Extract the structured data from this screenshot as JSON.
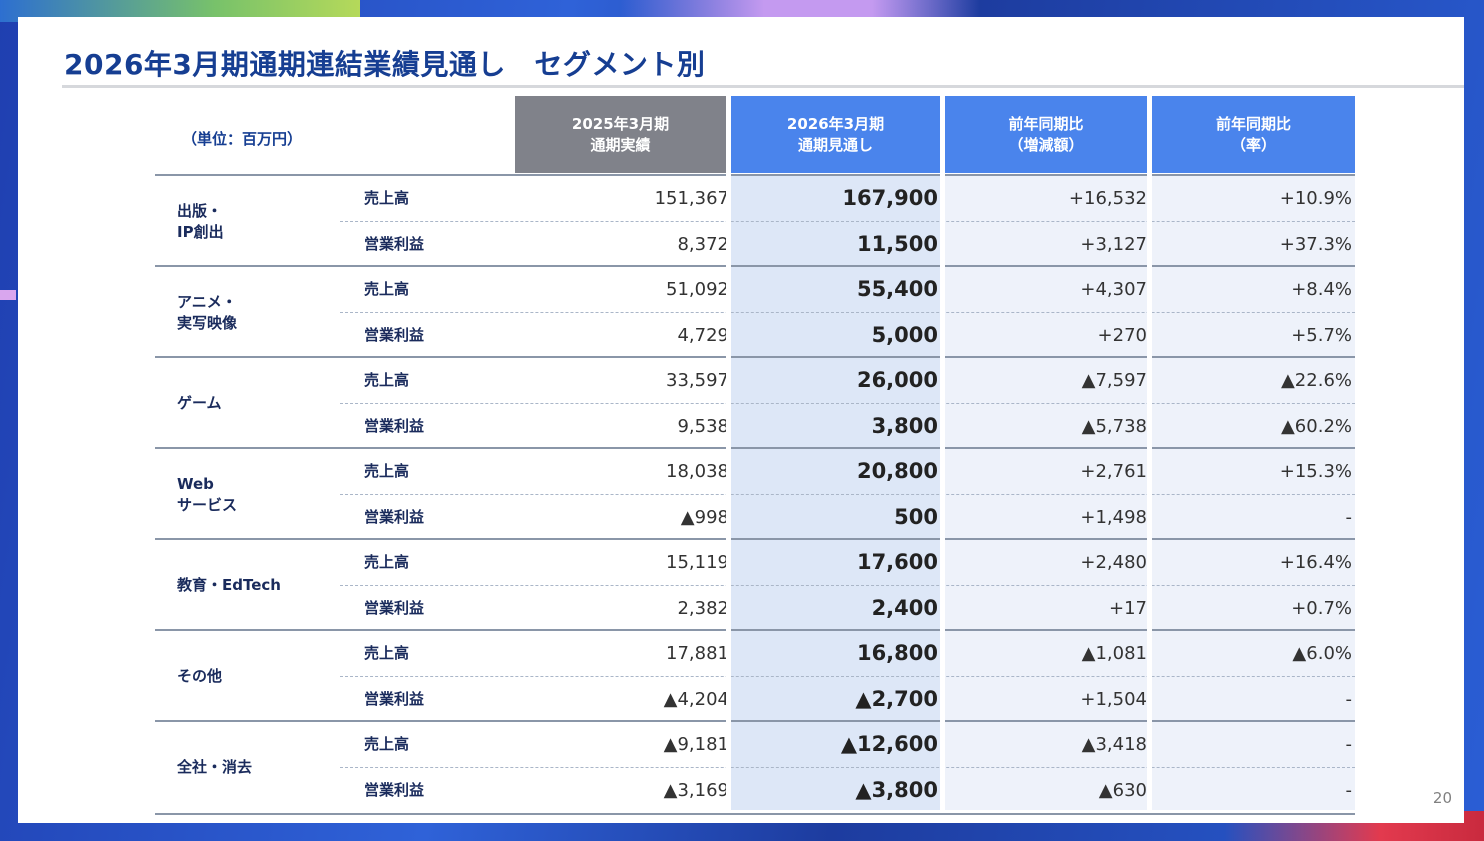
{
  "slide": {
    "title": "2026年3月期通期連結業績見通し　セグメント別",
    "page_number": "20"
  },
  "table": {
    "unit_label": "（単位：百万円）",
    "headers": {
      "prev": [
        "2025年3月期",
        "通期実績"
      ],
      "forecast": [
        "2026年3月期",
        "通期見通し"
      ],
      "diff": [
        "前年同期比",
        "（増減額）"
      ],
      "rate": [
        "前年同期比",
        "（率）"
      ]
    },
    "segments": [
      {
        "name": [
          "出版・",
          "IP創出"
        ],
        "rows": [
          {
            "metric": "売上高",
            "prev": "151,367",
            "forecast": "167,900",
            "diff": "+16,532",
            "rate": "+10.9%"
          },
          {
            "metric": "営業利益",
            "prev": "8,372",
            "forecast": "11,500",
            "diff": "+3,127",
            "rate": "+37.3%"
          }
        ]
      },
      {
        "name": [
          "アニメ・",
          "実写映像"
        ],
        "rows": [
          {
            "metric": "売上高",
            "prev": "51,092",
            "forecast": "55,400",
            "diff": "+4,307",
            "rate": "+8.4%"
          },
          {
            "metric": "営業利益",
            "prev": "4,729",
            "forecast": "5,000",
            "diff": "+270",
            "rate": "+5.7%"
          }
        ]
      },
      {
        "name": [
          "ゲーム"
        ],
        "rows": [
          {
            "metric": "売上高",
            "prev": "33,597",
            "forecast": "26,000",
            "diff": "▲7,597",
            "rate": "▲22.6%"
          },
          {
            "metric": "営業利益",
            "prev": "9,538",
            "forecast": "3,800",
            "diff": "▲5,738",
            "rate": "▲60.2%"
          }
        ]
      },
      {
        "name": [
          "Web",
          "サービス"
        ],
        "rows": [
          {
            "metric": "売上高",
            "prev": "18,038",
            "forecast": "20,800",
            "diff": "+2,761",
            "rate": "+15.3%"
          },
          {
            "metric": "営業利益",
            "prev": "▲998",
            "forecast": "500",
            "diff": "+1,498",
            "rate": "-"
          }
        ]
      },
      {
        "name": [
          "教育・EdTech"
        ],
        "rows": [
          {
            "metric": "売上高",
            "prev": "15,119",
            "forecast": "17,600",
            "diff": "+2,480",
            "rate": "+16.4%"
          },
          {
            "metric": "営業利益",
            "prev": "2,382",
            "forecast": "2,400",
            "diff": "+17",
            "rate": "+0.7%"
          }
        ]
      },
      {
        "name": [
          "その他"
        ],
        "rows": [
          {
            "metric": "売上高",
            "prev": "17,881",
            "forecast": "16,800",
            "diff": "▲1,081",
            "rate": "▲6.0%"
          },
          {
            "metric": "営業利益",
            "prev": "▲4,204",
            "forecast": "▲2,700",
            "diff": "+1,504",
            "rate": "-"
          }
        ]
      },
      {
        "name": [
          "全社・消去"
        ],
        "rows": [
          {
            "metric": "売上高",
            "prev": "▲9,181",
            "forecast": "▲12,600",
            "diff": "▲3,418",
            "rate": "-"
          },
          {
            "metric": "営業利益",
            "prev": "▲3,169",
            "forecast": "▲3,800",
            "diff": "▲630",
            "rate": "-"
          }
        ]
      }
    ]
  },
  "colors": {
    "title_text": "#163e92",
    "header_prev_bg": "#80828a",
    "header_forecast_bg": "#4a84ec",
    "forecast_column_bg": "#dde7f7",
    "diff_column_bg": "#eef2fa"
  }
}
